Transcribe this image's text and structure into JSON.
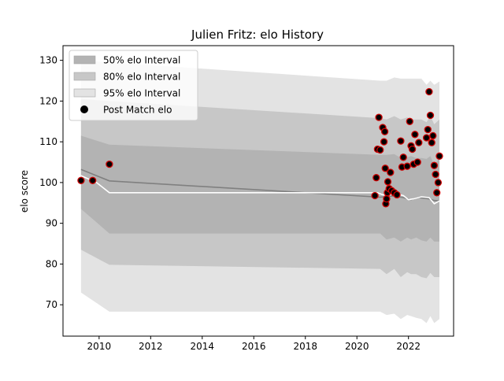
{
  "chart_data": {
    "type": "line",
    "title": "Julien Fritz: elo History",
    "xlabel": "",
    "ylabel": "elo score",
    "xlim": [
      2008.6,
      2023.75
    ],
    "ylim": [
      62.3,
      133.6
    ],
    "xticks": [
      2010,
      2012,
      2014,
      2016,
      2018,
      2020,
      2022
    ],
    "xtick_labels": [
      "2010",
      "2012",
      "2014",
      "2016",
      "2018",
      "2020",
      "2022"
    ],
    "yticks": [
      70,
      80,
      90,
      100,
      110,
      120,
      130
    ],
    "ytick_labels": [
      "70",
      "80",
      "90",
      "100",
      "110",
      "120",
      "130"
    ],
    "grid": false,
    "legend_position": "top-left",
    "legend": [
      {
        "label": "50% elo Interval",
        "kind": "band",
        "color": "#b3b3b3"
      },
      {
        "label": "80% elo Interval",
        "kind": "band",
        "color": "#c7c7c7"
      },
      {
        "label": "95% elo Interval",
        "kind": "band",
        "color": "#e3e3e3"
      },
      {
        "label": "Post Match elo",
        "kind": "marker",
        "color": "#000000"
      }
    ],
    "colors": {
      "band50": "#b3b3b3",
      "band80": "#c7c7c7",
      "band95": "#e3e3e3",
      "mean_line": "#808080",
      "median_line": "#ffffff",
      "point_fill": "#000000",
      "point_edge": "#cc0000"
    },
    "bands": {
      "x": [
        2009.3,
        2010.4,
        2020.9,
        2021.15,
        2021.45,
        2021.7,
        2021.95,
        2022.1,
        2022.3,
        2022.5,
        2022.7,
        2022.85,
        2023.0,
        2023.2
      ],
      "b95_lo": [
        73,
        68.3,
        68.3,
        67.5,
        67.8,
        66.5,
        67.5,
        67.2,
        66.8,
        66.5,
        65.5,
        67.2,
        65.5,
        66.5
      ],
      "b80_lo": [
        83.5,
        79.8,
        78.8,
        77.5,
        78.8,
        76.8,
        78.0,
        77.5,
        77.5,
        76.8,
        76.5,
        77.8,
        76.8,
        76.8
      ],
      "b50_lo": [
        93.5,
        87.5,
        87.5,
        86.0,
        86.5,
        85.5,
        86.5,
        86.0,
        86.5,
        85.8,
        85.5,
        86.5,
        85.5,
        85.5
      ],
      "b50_hi": [
        111.5,
        109.3,
        106.8,
        106.8,
        107.0,
        106.0,
        106.2,
        106.5,
        106.0,
        106.0,
        105.8,
        106.5,
        104.3,
        106.0
      ],
      "b80_hi": [
        120.5,
        120.0,
        115.8,
        115.5,
        116.3,
        115.5,
        116.0,
        115.5,
        115.5,
        115.5,
        114.8,
        116.3,
        114.3,
        115.5
      ],
      "b95_hi": [
        130.0,
        129.5,
        125.0,
        125.0,
        125.8,
        125.5,
        125.5,
        125.5,
        125.5,
        125.5,
        124.0,
        125.0,
        124.0,
        124.8
      ]
    },
    "mean_line": {
      "x": [
        2009.3,
        2010.4,
        2020.9,
        2021.4,
        2021.8,
        2022.1,
        2022.4,
        2022.8,
        2023.0,
        2023.2
      ],
      "y": [
        103.2,
        100.4,
        96.4,
        96.7,
        96.3,
        95.8,
        96.3,
        96.0,
        95.6,
        95.5
      ]
    },
    "median_line": {
      "x": [
        2009.3,
        2009.9,
        2010.4,
        2020.8,
        2021.0,
        2021.3,
        2021.5,
        2021.8,
        2022.0,
        2022.2,
        2022.5,
        2022.8,
        2023.0,
        2023.2
      ],
      "y": [
        101.7,
        100.0,
        97.5,
        97.5,
        97.0,
        97.0,
        97.3,
        96.8,
        95.8,
        96.0,
        96.5,
        96.3,
        94.8,
        95.5
      ]
    },
    "points": {
      "x": [
        2009.3,
        2009.75,
        2010.4,
        2020.7,
        2020.75,
        2020.8,
        2020.85,
        2020.9,
        2021.0,
        2021.05,
        2021.08,
        2021.1,
        2021.12,
        2021.15,
        2021.18,
        2021.2,
        2021.25,
        2021.3,
        2021.35,
        2021.45,
        2021.55,
        2021.7,
        2021.75,
        2021.8,
        2021.95,
        2022.05,
        2022.1,
        2022.15,
        2022.2,
        2022.25,
        2022.35,
        2022.4,
        2022.7,
        2022.75,
        2022.8,
        2022.85,
        2022.9,
        2022.95,
        2023.0,
        2023.05,
        2023.1,
        2023.15,
        2023.2
      ],
      "y": [
        100.5,
        100.5,
        104.5,
        96.8,
        101.2,
        108.2,
        116.0,
        108.0,
        113.5,
        110.0,
        112.5,
        103.5,
        94.8,
        96.0,
        97.5,
        100.2,
        98.5,
        102.5,
        98.0,
        97.5,
        97.0,
        110.2,
        103.8,
        106.2,
        104.0,
        115.0,
        109.0,
        108.2,
        104.5,
        111.8,
        105.0,
        109.8,
        111.0,
        113.0,
        122.3,
        116.5,
        109.8,
        111.5,
        104.2,
        102.0,
        97.5,
        100.0,
        106.5
      ]
    }
  }
}
